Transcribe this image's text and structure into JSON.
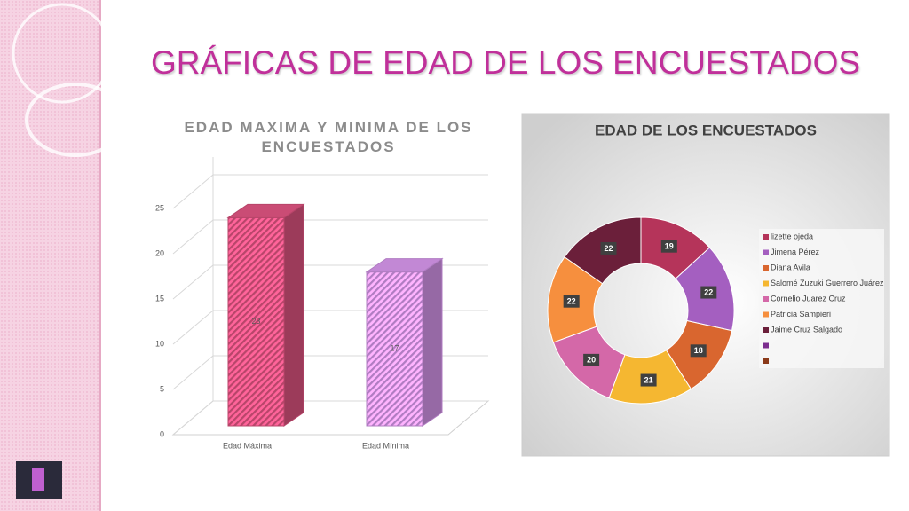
{
  "slide": {
    "title": "GRÁFICAS DE EDAD DE LOS ENCUESTADOS"
  },
  "chart_data": [
    {
      "type": "bar3d",
      "title": "EDAD MAXIMA Y MINIMA DE LOS ENCUESTADOS",
      "categories": [
        "Edad Máxima",
        "Edad Mínima"
      ],
      "values": [
        23,
        17
      ],
      "colors": [
        "#b8456a",
        "#b07cc2"
      ],
      "ylim": [
        0,
        25
      ],
      "yticks": [
        0,
        5,
        10,
        15,
        20,
        25
      ],
      "grid": true,
      "hatched": true
    },
    {
      "type": "doughnut",
      "title": "EDAD DE LOS ENCUESTADOS",
      "categories": [
        "lizette ojeda",
        "Jimena Pérez",
        "Diana Avila",
        "Salomé Zuzuki Guerrero Juárez",
        "Cornelio Juarez Cruz",
        "Patricia Sampieri",
        "Jaime Cruz Salgado",
        null,
        null
      ],
      "values": [
        19,
        22,
        18,
        21,
        20,
        22,
        22,
        null,
        null
      ],
      "colors": [
        "#b5345a",
        "#a45fc0",
        "#d9662f",
        "#f5b731",
        "#d468a8",
        "#f68f3e",
        "#6b1f3a",
        "#7b2d8e",
        "#8b3a1a"
      ],
      "legend": "right"
    }
  ]
}
